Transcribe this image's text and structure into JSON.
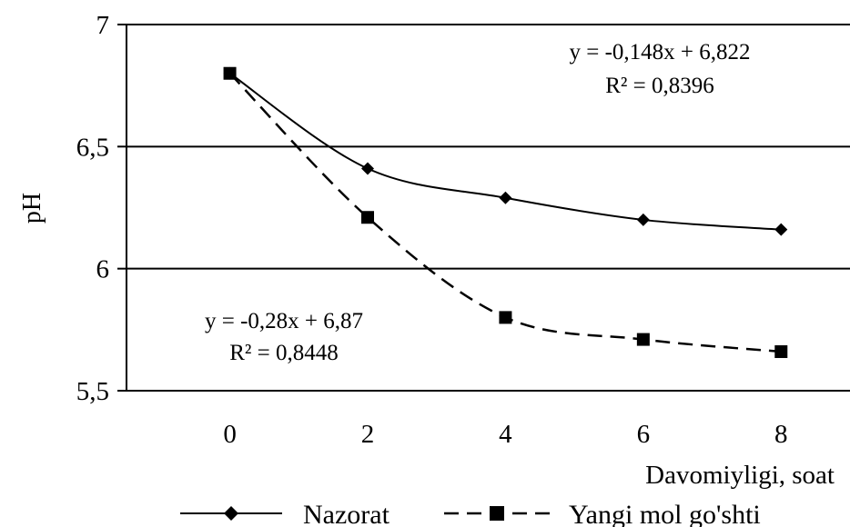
{
  "chart_data": {
    "type": "line",
    "title": "",
    "xlabel": "Davomiyligi, soat",
    "ylabel": "pH",
    "x": [
      0,
      2,
      4,
      6,
      8
    ],
    "xlim": [
      -1.5,
      9
    ],
    "ylim": [
      5.5,
      7
    ],
    "yticks": [
      5.5,
      6,
      6.5,
      7
    ],
    "ytick_labels": [
      "5,5",
      "6",
      "6,5",
      "7"
    ],
    "xtick_labels": [
      "0",
      "2",
      "4",
      "6",
      "8"
    ],
    "grid": "horizontal",
    "legend_position": "bottom",
    "series": [
      {
        "name": "Nazorat",
        "values": [
          6.8,
          6.41,
          6.29,
          6.2,
          6.16
        ],
        "style": "solid",
        "marker": "diamond",
        "color": "#000000",
        "equation": "y = -0,148x + 6,822",
        "r2": "R² = 0,8396"
      },
      {
        "name": "Yangi mol go'shti",
        "values": [
          6.8,
          6.21,
          5.8,
          5.71,
          5.66
        ],
        "style": "dashed",
        "marker": "square",
        "color": "#000000",
        "equation": "y = -0,28x + 6,87",
        "r2": "R² = 0,8448"
      }
    ]
  }
}
